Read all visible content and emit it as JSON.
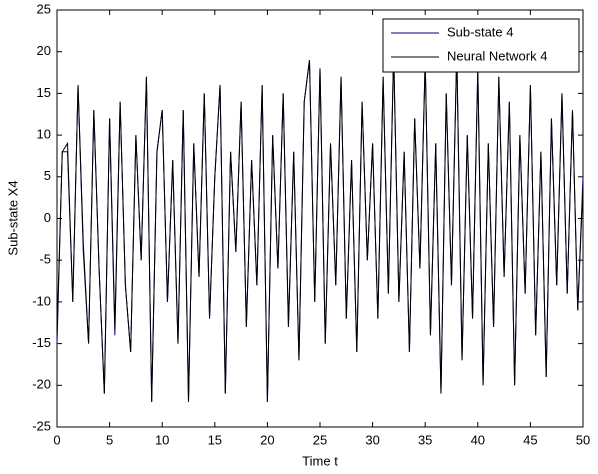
{
  "chart_data": {
    "type": "line",
    "x_label": "Time t",
    "y_label": "Sub-state X4",
    "x": [
      0,
      0.5,
      1,
      1.5,
      2,
      2.5,
      3,
      3.5,
      4,
      4.5,
      5,
      5.5,
      6,
      6.5,
      7,
      7.5,
      8,
      8.5,
      9,
      9.5,
      10,
      10.5,
      11,
      11.5,
      12,
      12.5,
      13,
      13.5,
      14,
      14.5,
      15,
      15.5,
      16,
      16.5,
      17,
      17.5,
      18,
      18.5,
      19,
      19.5,
      20,
      20.5,
      21,
      21.5,
      22,
      22.5,
      23,
      23.5,
      24,
      24.5,
      25,
      25.5,
      26,
      26.5,
      27,
      27.5,
      28,
      28.5,
      29,
      29.5,
      30,
      30.5,
      31,
      31.5,
      32,
      32.5,
      33,
      33.5,
      34,
      34.5,
      35,
      35.5,
      36,
      36.5,
      37,
      37.5,
      38,
      38.5,
      39,
      39.5,
      40,
      40.5,
      41,
      41.5,
      42,
      42.5,
      43,
      43.5,
      44,
      44.5,
      45,
      45.5,
      46,
      46.5,
      47,
      47.5,
      48,
      48.5,
      49,
      49.5,
      50
    ],
    "series": [
      {
        "name": "Sub-state 4",
        "color": "#00007f",
        "values": [
          -15,
          8,
          8,
          -10,
          16,
          -4,
          -15,
          13,
          -6,
          -21,
          12,
          -14,
          14,
          -8,
          -16,
          10,
          -5,
          17,
          -22,
          8,
          13,
          -10,
          7,
          -15,
          13,
          -22,
          9,
          -7,
          15,
          -12,
          5,
          16,
          -21,
          8,
          -4,
          14,
          -13,
          7,
          -8,
          16,
          -22,
          10,
          -6,
          15,
          -13,
          8,
          -17,
          14,
          19,
          -10,
          18,
          -15,
          9,
          -8,
          17,
          -12,
          7,
          -16,
          14,
          -5,
          9,
          -12,
          17,
          -9,
          20,
          -10,
          8,
          -16,
          12,
          -6,
          19,
          -14,
          9,
          -21,
          15,
          -8,
          20,
          -17,
          10,
          -12,
          18,
          -20,
          9,
          -13,
          17,
          -7,
          14,
          -20,
          10,
          -9,
          16,
          -14,
          8,
          -19,
          12,
          -8,
          15,
          -9,
          13,
          -11,
          5
        ]
      },
      {
        "name": "Neural Network 4",
        "color": "#000000",
        "values": [
          -14,
          8,
          9,
          -10,
          16,
          -3,
          -15,
          13,
          -6,
          -21,
          12,
          -13,
          14,
          -8,
          -16,
          10,
          -5,
          17,
          -22,
          8,
          13,
          -10,
          7,
          -15,
          13,
          -22,
          9,
          -7,
          15,
          -12,
          5,
          16,
          -21,
          8,
          -4,
          14,
          -13,
          7,
          -8,
          16,
          -22,
          10,
          -6,
          15,
          -13,
          8,
          -17,
          14,
          19,
          -10,
          18,
          -15,
          9,
          -8,
          17,
          -12,
          7,
          -16,
          14,
          -5,
          9,
          -12,
          17,
          -9,
          20,
          -10,
          8,
          -16,
          12,
          -6,
          19,
          -14,
          9,
          -21,
          15,
          -8,
          20,
          -17,
          10,
          -12,
          18,
          -20,
          9,
          -13,
          17,
          -7,
          14,
          -20,
          10,
          -9,
          16,
          -14,
          8,
          -19,
          12,
          -8,
          15,
          -9,
          13,
          -11,
          4
        ]
      }
    ],
    "xlim": [
      0,
      50
    ],
    "xticks": [
      0,
      5,
      10,
      15,
      20,
      25,
      30,
      35,
      40,
      45,
      50
    ],
    "ylim": [
      -25,
      25
    ],
    "yticks": [
      -25,
      -20,
      -15,
      -10,
      -5,
      0,
      5,
      10,
      15,
      20,
      25
    ],
    "legend": "upper right",
    "grid": false
  }
}
